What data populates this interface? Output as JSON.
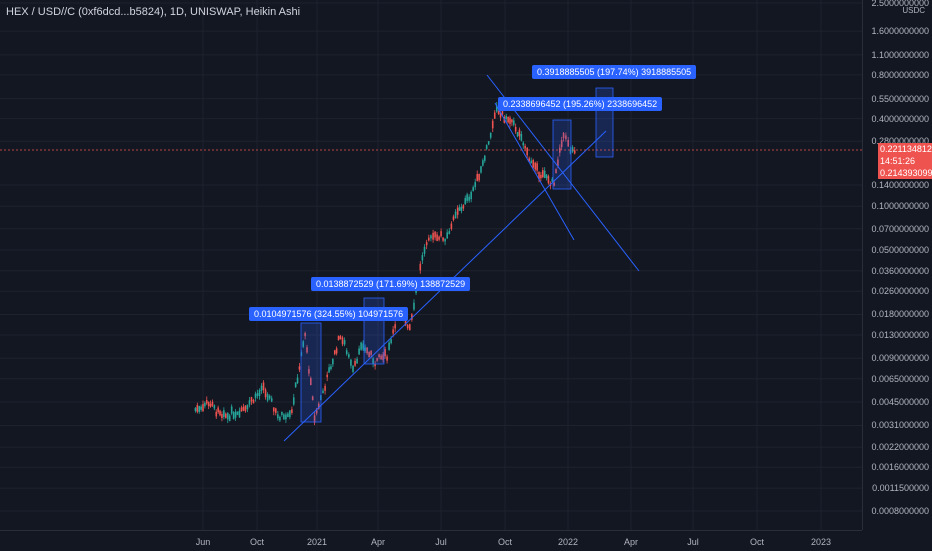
{
  "chart": {
    "title": "HEX / USD//C (0xf6dcd...b5824), 1D, UNISWAP, Heikin Ashi",
    "unit": "USDC",
    "price_labels": [
      "2.5000000000",
      "1.6000000000",
      "1.1000000000",
      "0.8000000000",
      "0.5500000000",
      "0.4000000000",
      "0.2800000000",
      "0.1400000000",
      "0.1000000000",
      "0.0700000000",
      "0.0500000000",
      "0.0360000000",
      "0.0260000000",
      "0.0180000000",
      "0.0130000000",
      "0.0090000000",
      "0.0065000000",
      "0.0045000000",
      "0.0031000000",
      "0.0022000000",
      "0.0016000000",
      "0.0011500000",
      "0.0008000000"
    ],
    "time_labels": [
      "Jun",
      "Oct",
      "2021",
      "Apr",
      "Jul",
      "Oct",
      "2022",
      "Apr",
      "Jul",
      "Oct",
      "2023"
    ],
    "current_price": "0.2211348123",
    "countdown": "14:51:26",
    "prev_price": "0.2143930994",
    "callouts": [
      {
        "text": "0.0104971576 (324.55%) 104971576"
      },
      {
        "text": "0.0138872529 (171.69%) 138872529"
      },
      {
        "text": "0.2338696452 (195.26%) 2338696452"
      },
      {
        "text": "0.3918885505 (197.74%) 3918885505"
      }
    ],
    "colors": {
      "up": "#26a69a",
      "down": "#ef5350",
      "line": "#2962ff",
      "bg": "#131722"
    }
  },
  "chart_data": {
    "type": "candlestick",
    "scale": "log",
    "series": [
      {
        "x": "2020-05-20",
        "y": 0.004
      },
      {
        "x": "2020-06-10",
        "y": 0.0045
      },
      {
        "x": "2020-07-01",
        "y": 0.0035
      },
      {
        "x": "2020-08-01",
        "y": 0.004
      },
      {
        "x": "2020-09-05",
        "y": 0.0055
      },
      {
        "x": "2020-10-01",
        "y": 0.0035
      },
      {
        "x": "2020-10-20",
        "y": 0.004
      },
      {
        "x": "2020-11-10",
        "y": 0.013
      },
      {
        "x": "2020-11-25",
        "y": 0.0035
      },
      {
        "x": "2020-12-15",
        "y": 0.0065
      },
      {
        "x": "2021-01-05",
        "y": 0.013
      },
      {
        "x": "2021-01-25",
        "y": 0.008
      },
      {
        "x": "2021-02-10",
        "y": 0.011
      },
      {
        "x": "2021-03-01",
        "y": 0.0085
      },
      {
        "x": "2021-03-20",
        "y": 0.0095
      },
      {
        "x": "2021-04-05",
        "y": 0.018
      },
      {
        "x": "2021-04-25",
        "y": 0.015
      },
      {
        "x": "2021-05-15",
        "y": 0.045
      },
      {
        "x": "2021-06-01",
        "y": 0.065
      },
      {
        "x": "2021-06-20",
        "y": 0.06
      },
      {
        "x": "2021-07-10",
        "y": 0.09
      },
      {
        "x": "2021-07-25",
        "y": 0.11
      },
      {
        "x": "2021-08-10",
        "y": 0.15
      },
      {
        "x": "2021-08-25",
        "y": 0.25
      },
      {
        "x": "2021-09-10",
        "y": 0.45
      },
      {
        "x": "2021-09-25",
        "y": 0.4
      },
      {
        "x": "2021-10-10",
        "y": 0.35
      },
      {
        "x": "2021-10-25",
        "y": 0.25
      },
      {
        "x": "2021-11-10",
        "y": 0.18
      },
      {
        "x": "2021-11-25",
        "y": 0.16
      },
      {
        "x": "2021-12-10",
        "y": 0.14
      },
      {
        "x": "2021-12-25",
        "y": 0.32
      },
      {
        "x": "2022-01-05",
        "y": 0.24
      },
      {
        "x": "2022-01-15",
        "y": 0.2211
      }
    ]
  }
}
